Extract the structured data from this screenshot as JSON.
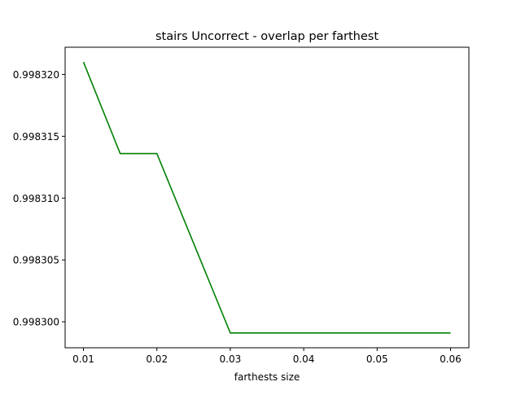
{
  "chart_data": {
    "type": "line",
    "title": "stairs Uncorrect - overlap per farthest",
    "xlabel": "farthests size",
    "ylabel": "",
    "x": [
      0.01,
      0.015,
      0.02,
      0.03,
      0.04,
      0.05,
      0.06
    ],
    "series": [
      {
        "color": "#008000",
        "values": [
          0.998321,
          0.9983136,
          0.9983136,
          0.9982991,
          0.9982991,
          0.9982991,
          0.9982991
        ]
      }
    ],
    "xlim": [
      0.0075,
      0.0625
    ],
    "ylim": [
      0.9982979,
      0.9983222
    ],
    "xticks": [
      0.01,
      0.02,
      0.03,
      0.04,
      0.05,
      0.06
    ],
    "xtick_labels": [
      "0.01",
      "0.02",
      "0.03",
      "0.04",
      "0.05",
      "0.06"
    ],
    "yticks": [
      0.9983,
      0.998305,
      0.99831,
      0.998315,
      0.99832
    ],
    "ytick_labels": [
      "0.998300",
      "0.998305",
      "0.998310",
      "0.998315",
      "0.998320"
    ],
    "grid": false,
    "legend": "none"
  }
}
